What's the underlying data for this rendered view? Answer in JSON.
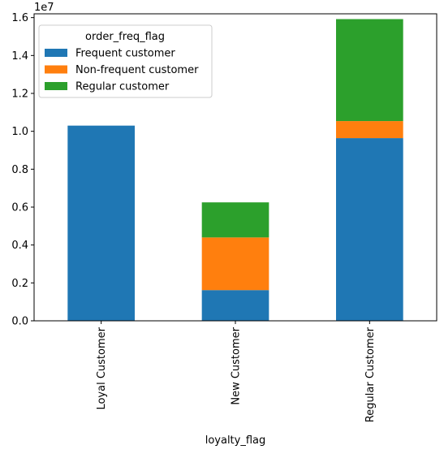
{
  "chart_data": {
    "type": "bar",
    "stacked": true,
    "orientation": "vertical",
    "categories": [
      "Loyal Customer",
      "New Customer",
      "Regular Customer"
    ],
    "series": [
      {
        "name": "Frequent customer",
        "color": "#1f77b4",
        "values": [
          10300000,
          1620000,
          9640000
        ]
      },
      {
        "name": "Non-frequent customer",
        "color": "#ff7f0e",
        "values": [
          0,
          2780000,
          900000
        ]
      },
      {
        "name": "Regular customer",
        "color": "#2ca02c",
        "values": [
          0,
          1850000,
          5380000
        ]
      }
    ],
    "xlabel": "loyalty_flag",
    "ylabel": "",
    "y_offset_label": "1e7",
    "ylim": [
      0,
      16200000
    ],
    "yticks": [
      0,
      2000000,
      4000000,
      6000000,
      8000000,
      10000000,
      12000000,
      14000000,
      16000000
    ],
    "ytick_labels": [
      "0.0",
      "0.2",
      "0.4",
      "0.6",
      "0.8",
      "1.0",
      "1.2",
      "1.4",
      "1.6"
    ],
    "legend": {
      "title": "order_freq_flag",
      "placement": "top-left"
    },
    "grid": false
  }
}
